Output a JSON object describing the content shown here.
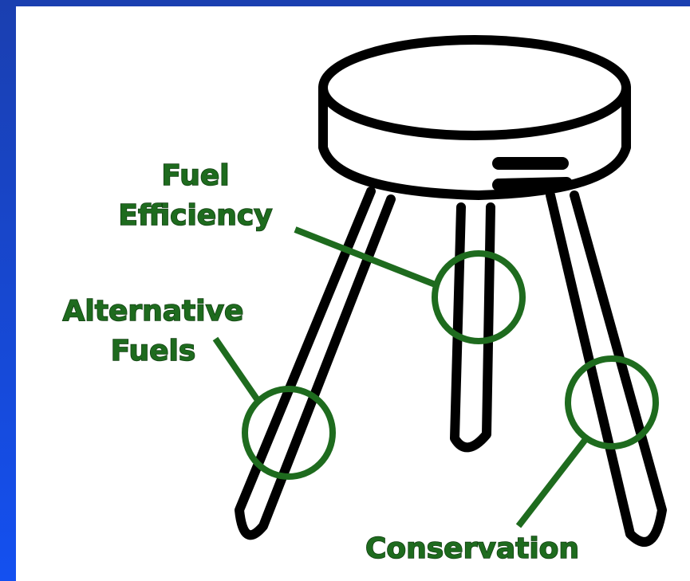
{
  "labels": {
    "fuel_efficiency": [
      "Fuel",
      "Efficiency"
    ],
    "alternative_fuels": [
      "Alternative",
      "Fuels"
    ],
    "conservation": "Conservation"
  }
}
